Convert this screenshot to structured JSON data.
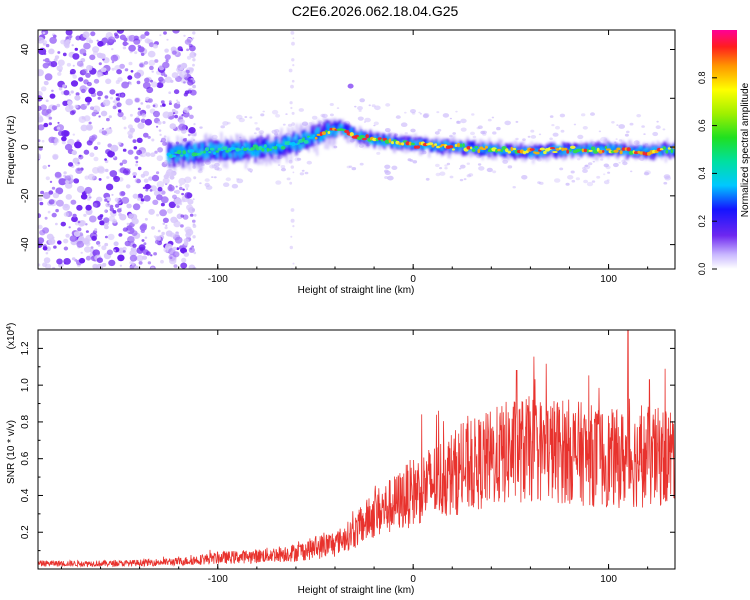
{
  "title": "C2E6.2026.062.18.04.G25",
  "chart_data": [
    {
      "type": "heatmap",
      "name": "spectrogram",
      "xlabel": "Height of straight line (km)",
      "ylabel": "Frequency (Hz)",
      "xlim": [
        -192,
        134
      ],
      "ylim": [
        -50,
        48
      ],
      "xticks": [
        -100,
        0,
        100
      ],
      "yticks": [
        -40,
        -20,
        0,
        20,
        40
      ],
      "colorbar": {
        "label": "Normalized spectral amplitude",
        "range": [
          0.0,
          1.0
        ],
        "ticks": [
          "0.0",
          "0.2",
          "0.4",
          "0.6",
          "0.8"
        ]
      },
      "ridge": {
        "description_x_km": [
          -125,
          -110,
          -90,
          -70,
          -55,
          -45,
          -38,
          -30,
          -20,
          -10,
          0,
          20,
          40,
          60,
          80,
          100,
          120,
          134
        ],
        "frequency_hz": [
          -3,
          -2,
          -1,
          0,
          3,
          6,
          8,
          5,
          3,
          2,
          1,
          0,
          -1,
          -2,
          -1,
          -1,
          -2,
          -1
        ]
      }
    },
    {
      "type": "line",
      "name": "snr",
      "xlabel": "Height of straight line (km)",
      "ylabel": "SNR (10 * v/v)",
      "yscale_label": "(x10",
      "yscale_exp": "4",
      "yscale_close": ")",
      "color": "#e8322d",
      "xlim": [
        -192,
        134
      ],
      "ylim": [
        0,
        1.3
      ],
      "xticks": [
        -100,
        0,
        100
      ],
      "yticks": [
        0.2,
        0.4,
        0.6,
        0.8,
        1.0,
        1.2
      ],
      "trend": {
        "x_km": [
          -192,
          -150,
          -120,
          -100,
          -80,
          -60,
          -40,
          -30,
          -20,
          -10,
          0,
          20,
          40,
          50,
          60,
          80,
          100,
          120,
          134
        ],
        "snr_x1e4": [
          0.03,
          0.03,
          0.04,
          0.06,
          0.07,
          0.09,
          0.14,
          0.2,
          0.3,
          0.35,
          0.42,
          0.52,
          0.6,
          0.64,
          0.65,
          0.64,
          0.6,
          0.6,
          0.62
        ]
      },
      "peaks": [
        {
          "x_km": 53,
          "snr_x1e4": 1.08
        },
        {
          "x_km": 110,
          "snr_x1e4": 1.3
        },
        {
          "x_km": 121,
          "snr_x1e4": 1.03
        }
      ]
    }
  ]
}
